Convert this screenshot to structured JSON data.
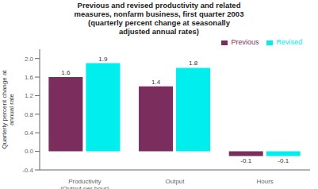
{
  "chart_data": {
    "type": "bar",
    "title": "Previous and revised productivity and related\nmeasures, nonfarm business, first quarter 2003\n(quarterly percent change at seasonally\nadjusted annual rates)",
    "categories": [
      "Productivity\n(Output per hour)",
      "Output",
      "Hours"
    ],
    "series": [
      {
        "name": "Previous",
        "color": "#7b2d5e",
        "values": [
          1.6,
          1.4,
          -0.1
        ]
      },
      {
        "name": "Revised",
        "color": "#00eeee",
        "values": [
          1.9,
          1.8,
          -0.1
        ]
      }
    ],
    "ylabel": "Quarterly percent change at\nannual rate",
    "ylim": [
      -0.4,
      2.2
    ],
    "yticks": [
      -0.4,
      {
        "value": 0,
        "label": "0.0"
      },
      0.4,
      0.8,
      1.2,
      1.6,
      {
        "value": 2,
        "label": "2.0"
      }
    ],
    "data_labels": true,
    "legend": "upper right"
  }
}
